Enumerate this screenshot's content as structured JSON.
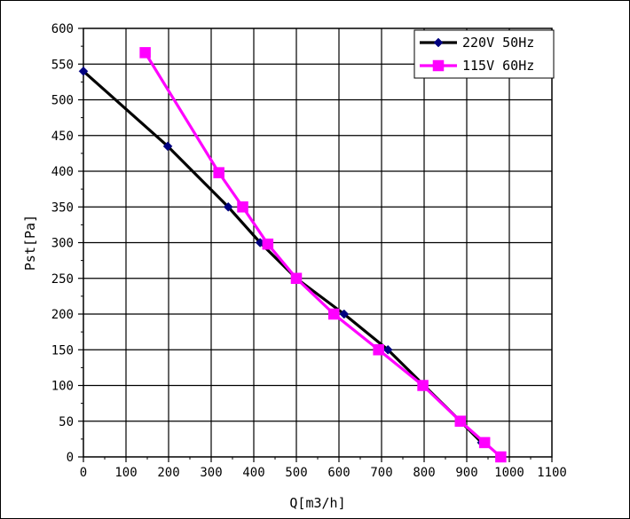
{
  "chart_data": {
    "type": "line",
    "xlabel": "Q[m3/h]",
    "ylabel": "Pst[Pa]",
    "xlim": [
      0,
      1100
    ],
    "ylim": [
      0,
      600
    ],
    "xticks": [
      0,
      100,
      200,
      300,
      400,
      500,
      600,
      700,
      800,
      900,
      1000,
      1100
    ],
    "yticks": [
      0,
      50,
      100,
      150,
      200,
      250,
      300,
      350,
      400,
      450,
      500,
      550,
      600
    ],
    "grid": true,
    "legend_position": "top-right",
    "series": [
      {
        "name": "220V 50Hz",
        "color": "#000000",
        "marker_color": "#000080",
        "marker": "diamond",
        "x": [
          0,
          198,
          340,
          415,
          500,
          612,
          715,
          800,
          885,
          935
        ],
        "y": [
          540,
          435,
          350,
          300,
          250,
          200,
          150,
          100,
          50,
          20
        ]
      },
      {
        "name": "115V 60Hz",
        "color": "#ff00ff",
        "marker_color": "#ff00ff",
        "marker": "square",
        "x": [
          145,
          318,
          374,
          433,
          500,
          588,
          693,
          797,
          885,
          942,
          980
        ],
        "y": [
          566,
          398,
          350,
          298,
          250,
          200,
          150,
          100,
          50,
          20,
          0
        ]
      }
    ]
  }
}
